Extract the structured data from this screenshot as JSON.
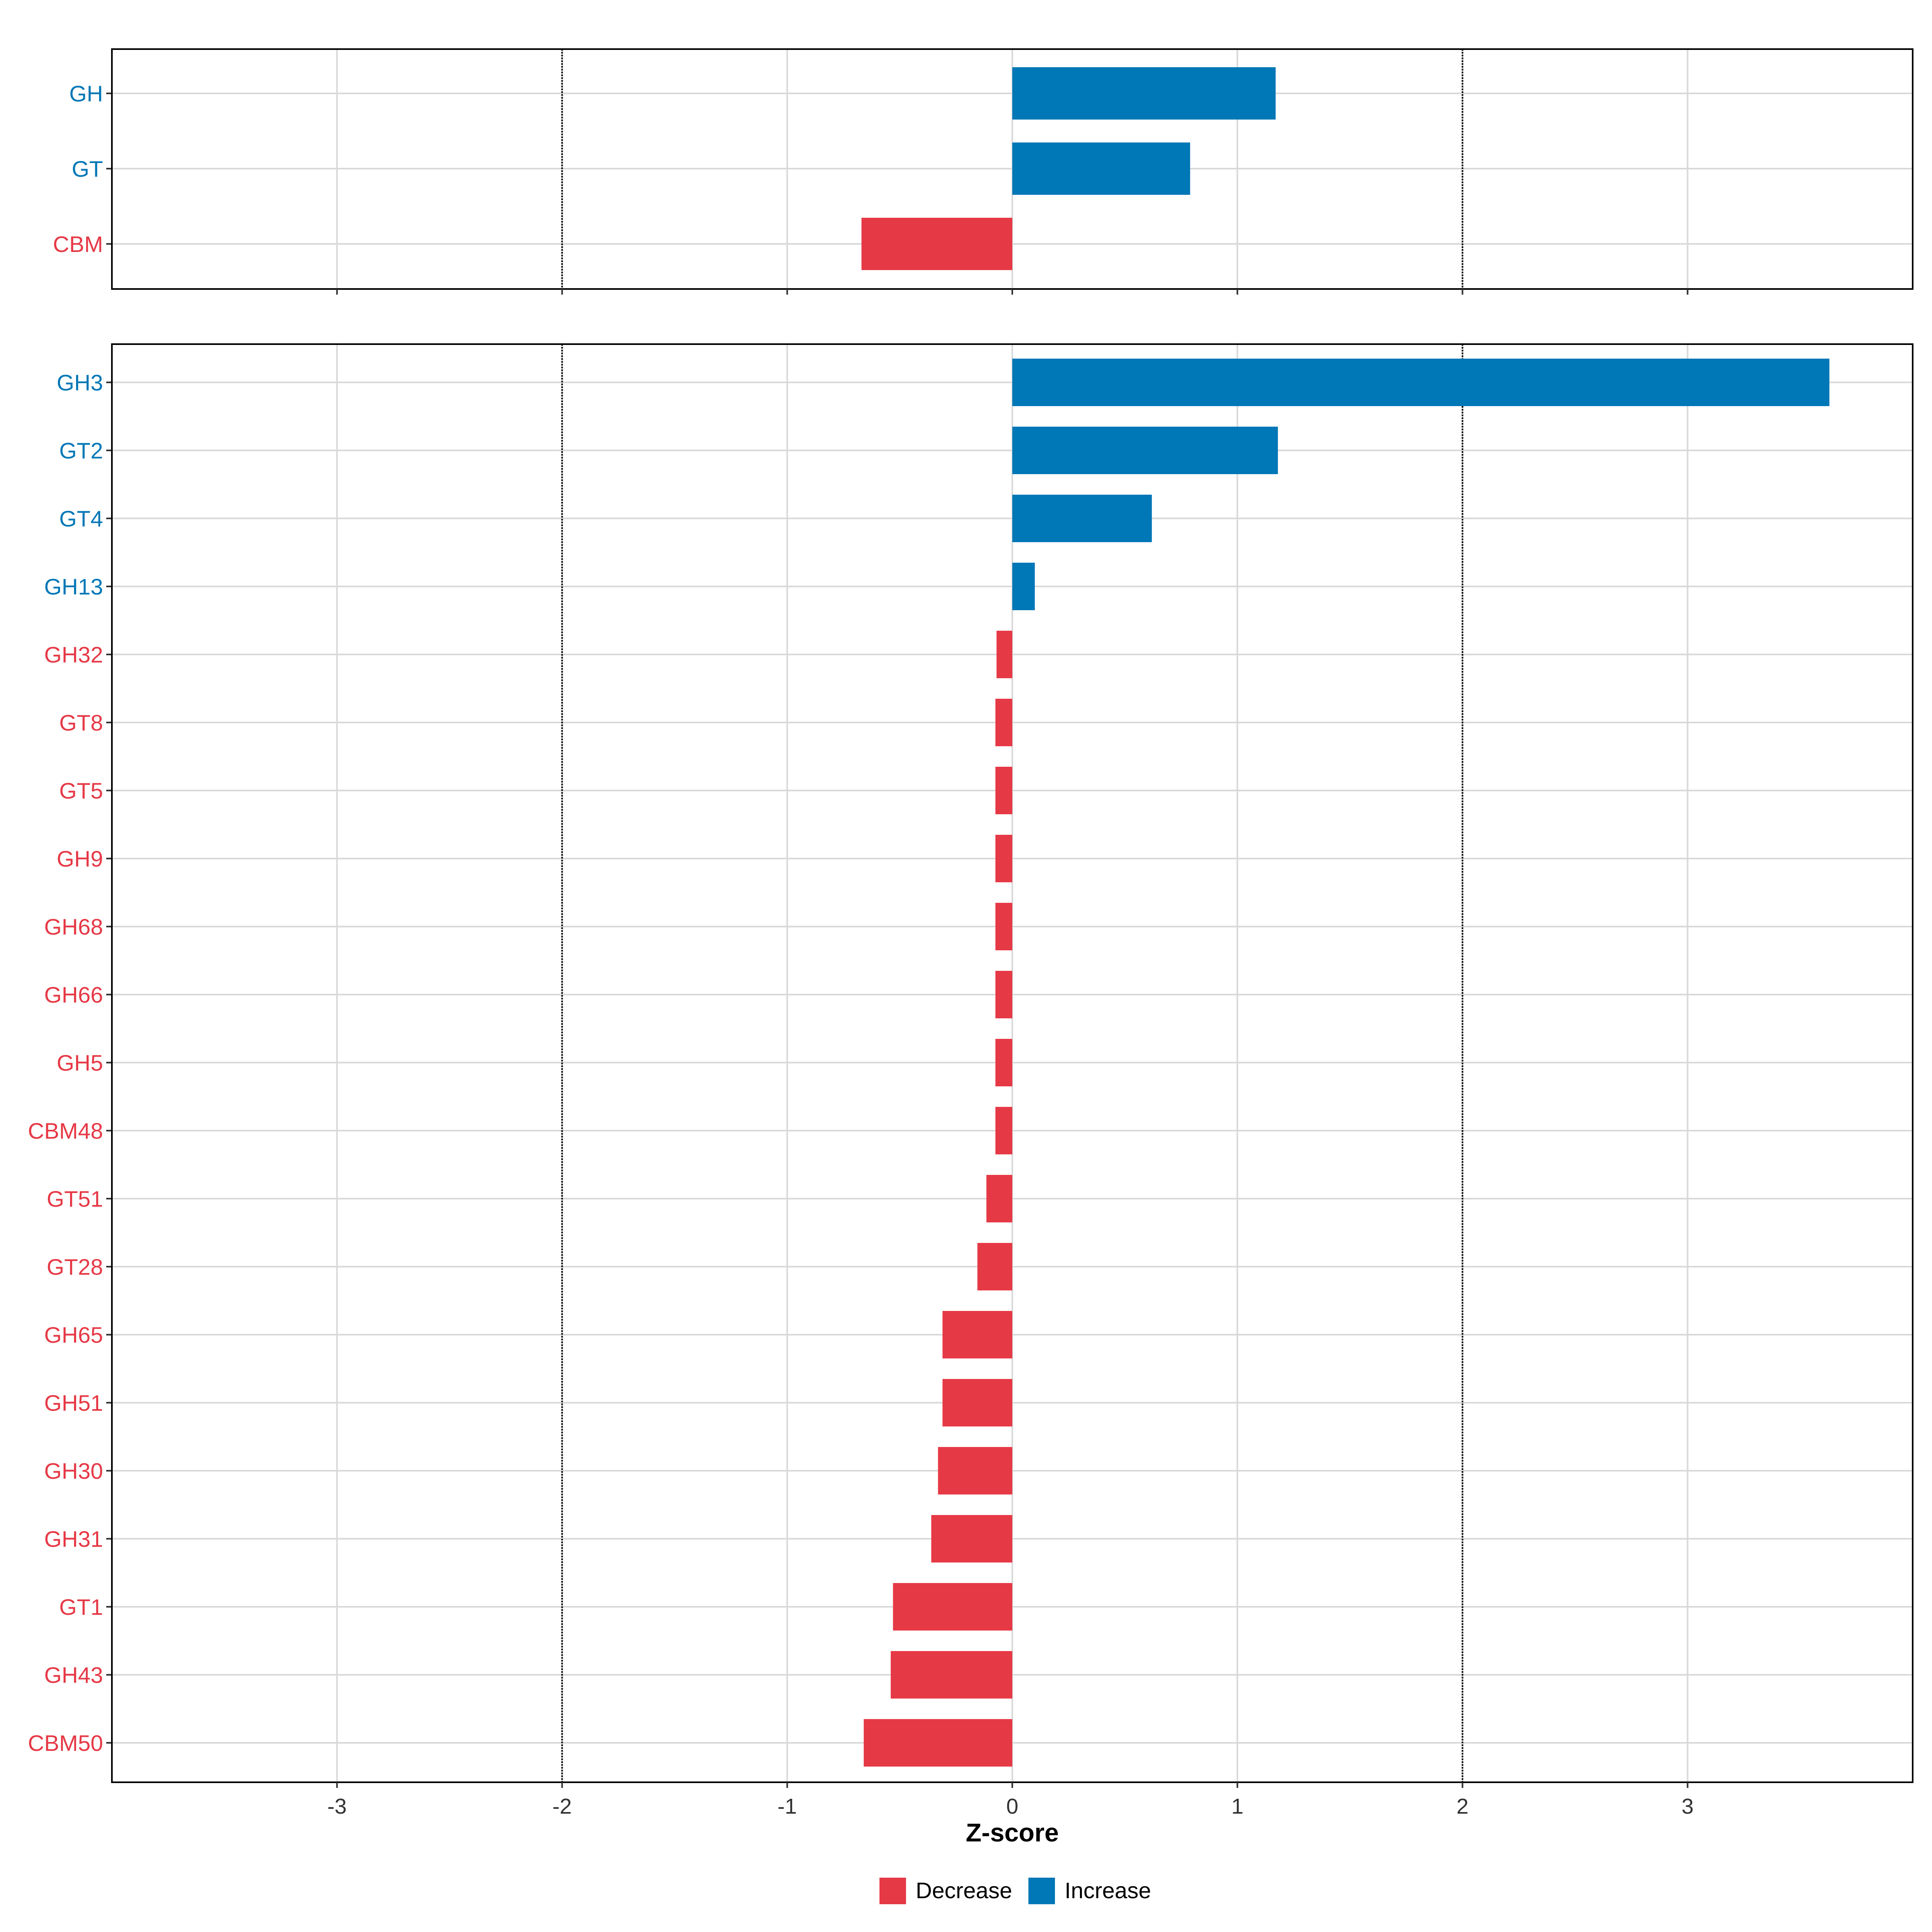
{
  "chart_data": [
    {
      "type": "bar",
      "orientation": "horizontal",
      "panel": "class",
      "categories": [
        "GH",
        "GT",
        "CBM"
      ],
      "values": [
        1.17,
        0.79,
        -0.67
      ],
      "xlim": [
        -4.0,
        4.0
      ],
      "grid": true,
      "reference_lines": [
        -2,
        2
      ]
    },
    {
      "type": "bar",
      "orientation": "horizontal",
      "panel": "family",
      "categories": [
        "GH3",
        "GT2",
        "GT4",
        "GH13",
        "GH32",
        "GT8",
        "GT5",
        "GH9",
        "GH68",
        "GH66",
        "GH5",
        "CBM48",
        "GT51",
        "GT28",
        "GH65",
        "GH51",
        "GH30",
        "GH31",
        "GT1",
        "GH43",
        "CBM50"
      ],
      "values": [
        3.63,
        1.18,
        0.62,
        0.1,
        -0.07,
        -0.075,
        -0.075,
        -0.075,
        -0.075,
        -0.075,
        -0.075,
        -0.075,
        -0.115,
        -0.155,
        -0.31,
        -0.31,
        -0.33,
        -0.36,
        -0.53,
        -0.54,
        -0.66
      ],
      "xlim": [
        -4.0,
        4.0
      ],
      "grid": true,
      "reference_lines": [
        -2,
        2
      ]
    }
  ],
  "x_axis": {
    "label": "Z-score",
    "ticks": [
      -3,
      -2,
      -1,
      0,
      1,
      2,
      3
    ],
    "tick_labels": [
      "-3",
      "-2",
      "-1",
      "0",
      "1",
      "2",
      "3"
    ]
  },
  "legend": {
    "placement": "bottom",
    "items": [
      {
        "label": "Decrease",
        "color": "#E63946"
      },
      {
        "label": "Increase",
        "color": "#0077B6"
      }
    ]
  },
  "colors": {
    "increase": "#0077B6",
    "decrease": "#E63946",
    "grid": "#D9D9D9",
    "frame": "#000000"
  }
}
